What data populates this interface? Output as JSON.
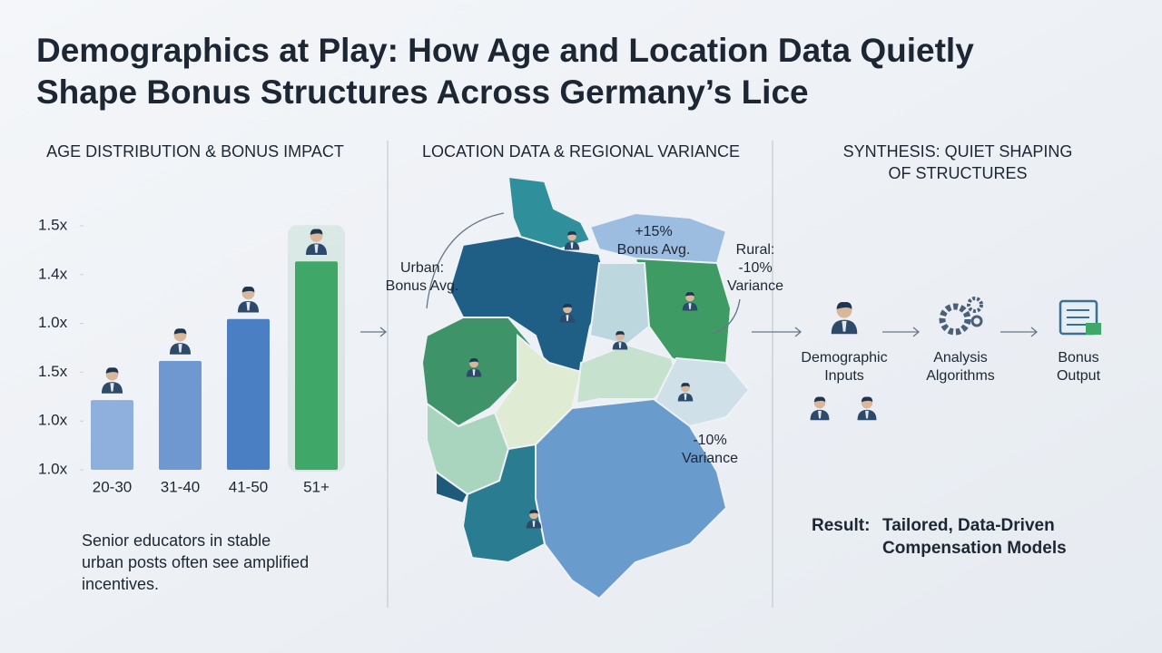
{
  "header": {
    "title": [
      "Demographics at Play: How Age and Location Data Quietly",
      "Shape Bonus Structures Across Germany’s Lice"
    ]
  },
  "chart_data": {
    "type": "bar",
    "title": "AGE DISTRIBUTION & BONUS IMPACT",
    "categories": [
      "20-30",
      "31-40",
      "41-50",
      "51+"
    ],
    "values": [
      1.43,
      2.23,
      3.09,
      4.27
    ],
    "colors": [
      "#8fb0dc",
      "#6f98d0",
      "#4a7fc3",
      "#3fa868"
    ],
    "ylim": [
      0,
      5
    ],
    "yticks": [
      {
        "value": 0,
        "label": "1.0x"
      },
      {
        "value": 1,
        "label": "1.0x"
      },
      {
        "value": 2,
        "label": "1.5x"
      },
      {
        "value": 3,
        "label": "1.0x"
      },
      {
        "value": 4,
        "label": "1.4x"
      },
      {
        "value": 5,
        "label": "1.5x"
      }
    ],
    "caption": [
      "Senior educators in stable",
      "urban posts often see amplified",
      "incentives."
    ]
  },
  "map": {
    "title": "LOCATION DATA & REGIONAL VARIANCE",
    "annotations": [
      [
        "Urban:",
        "Bonus Avg."
      ],
      [
        "+15%",
        "Bonus Avg."
      ],
      [
        "Rural:",
        "-10%",
        "Variance"
      ],
      [
        "-10%",
        "Variance"
      ]
    ]
  },
  "synthesis": {
    "title": [
      "SYNTHESIS: QUIET SHAPING",
      "OF STRUCTURES"
    ],
    "steps": [
      [
        "Demographic",
        "Inputs"
      ],
      [
        "Analysis",
        "Algorithms"
      ],
      [
        "Bonus",
        "Output"
      ]
    ],
    "result_label": "Result:",
    "result_text": [
      "Tailored, Data-Driven",
      "Compensation Models"
    ]
  }
}
